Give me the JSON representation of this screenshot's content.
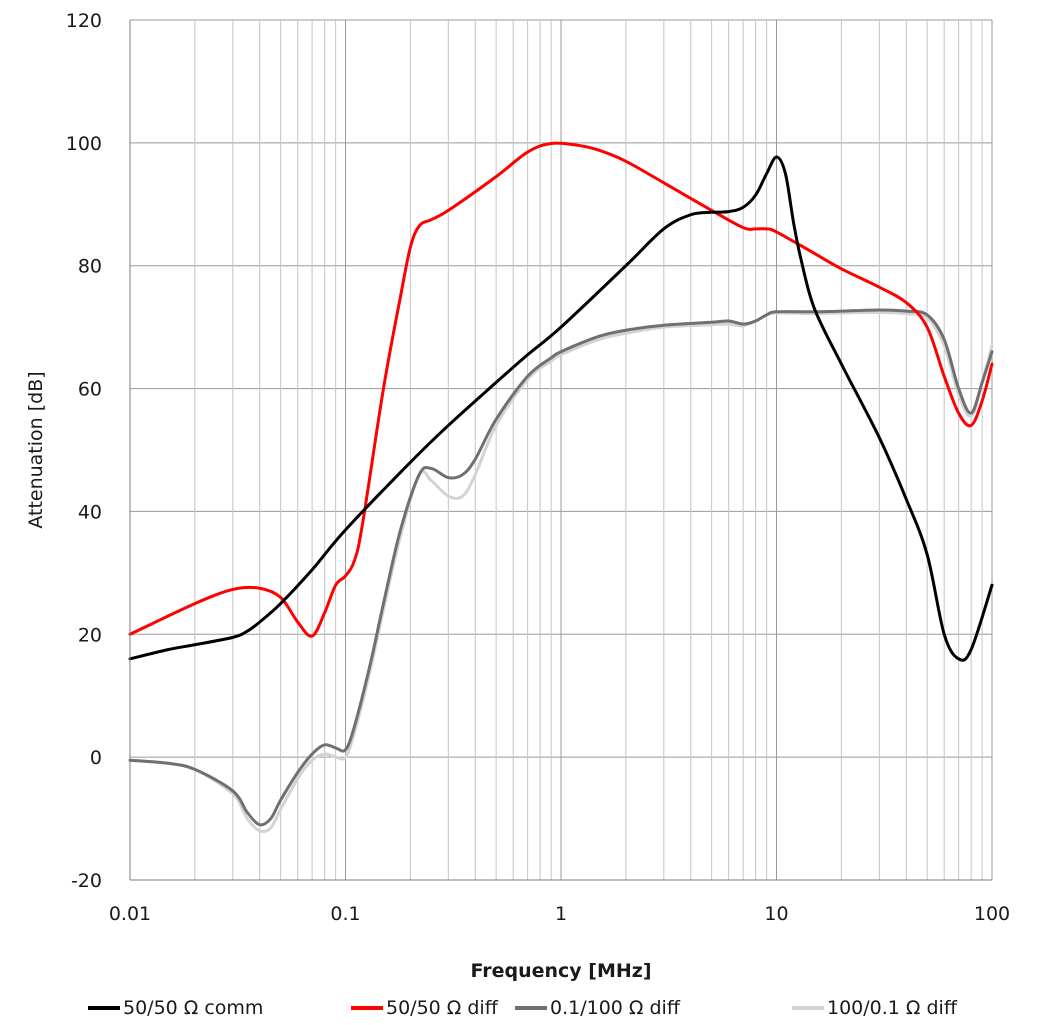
{
  "chart_data": {
    "type": "line",
    "xlabel": "Frequency [MHz]",
    "ylabel": "Attenuation [dB]",
    "x_scale": "log",
    "xlim": [
      0.01,
      100
    ],
    "ylim": [
      -20,
      120
    ],
    "x_ticks": [
      0.01,
      0.1,
      1,
      10,
      100
    ],
    "x_tick_labels": [
      "0.01",
      "0.1",
      "1",
      "10",
      "100"
    ],
    "y_ticks": [
      -20,
      0,
      20,
      40,
      60,
      80,
      100,
      120
    ],
    "y_tick_labels": [
      "-20",
      "0",
      "20",
      "40",
      "60",
      "80",
      "100",
      "120"
    ],
    "grid": true,
    "legend_position": "bottom",
    "series": [
      {
        "name": "50/50 Ω comm",
        "color": "#000000",
        "points": [
          [
            0.01,
            16
          ],
          [
            0.015,
            17.5
          ],
          [
            0.02,
            18.3
          ],
          [
            0.03,
            19.5
          ],
          [
            0.035,
            20.5
          ],
          [
            0.04,
            22
          ],
          [
            0.05,
            25
          ],
          [
            0.07,
            30.5
          ],
          [
            0.1,
            37
          ],
          [
            0.2,
            48
          ],
          [
            0.3,
            54
          ],
          [
            0.5,
            61
          ],
          [
            0.7,
            65.5
          ],
          [
            1,
            70
          ],
          [
            2,
            80
          ],
          [
            3,
            86
          ],
          [
            4,
            88.3
          ],
          [
            5,
            88.7
          ],
          [
            6,
            88.8
          ],
          [
            7,
            89.5
          ],
          [
            8,
            91.5
          ],
          [
            9,
            95
          ],
          [
            10,
            97.7
          ],
          [
            11,
            95
          ],
          [
            12,
            87
          ],
          [
            13,
            81
          ],
          [
            15,
            73
          ],
          [
            20,
            64
          ],
          [
            30,
            52
          ],
          [
            40,
            42
          ],
          [
            50,
            33
          ],
          [
            60,
            20
          ],
          [
            70,
            16
          ],
          [
            80,
            17.5
          ],
          [
            100,
            28
          ]
        ]
      },
      {
        "name": "50/50 Ω diff",
        "color": "#ff0000",
        "points": [
          [
            0.01,
            20
          ],
          [
            0.02,
            25
          ],
          [
            0.03,
            27.3
          ],
          [
            0.04,
            27.5
          ],
          [
            0.05,
            26
          ],
          [
            0.06,
            22
          ],
          [
            0.07,
            19.7
          ],
          [
            0.08,
            23.5
          ],
          [
            0.09,
            28
          ],
          [
            0.1,
            29.5
          ],
          [
            0.11,
            32
          ],
          [
            0.12,
            38
          ],
          [
            0.15,
            60
          ],
          [
            0.18,
            75
          ],
          [
            0.2,
            83
          ],
          [
            0.22,
            86.5
          ],
          [
            0.25,
            87.5
          ],
          [
            0.3,
            89
          ],
          [
            0.5,
            94.5
          ],
          [
            0.7,
            98.5
          ],
          [
            0.9,
            99.9
          ],
          [
            1.2,
            99.6
          ],
          [
            1.5,
            98.8
          ],
          [
            2,
            97
          ],
          [
            3,
            93.5
          ],
          [
            5,
            89
          ],
          [
            7,
            86.2
          ],
          [
            8,
            86
          ],
          [
            9,
            86
          ],
          [
            10,
            85.5
          ],
          [
            15,
            82
          ],
          [
            20,
            79.5
          ],
          [
            30,
            76.5
          ],
          [
            40,
            74
          ],
          [
            50,
            70
          ],
          [
            60,
            62
          ],
          [
            70,
            56
          ],
          [
            80,
            54
          ],
          [
            90,
            58
          ],
          [
            100,
            64
          ]
        ]
      },
      {
        "name": "0.1/100 Ω diff",
        "color": "#707070",
        "points": [
          [
            0.01,
            -0.5
          ],
          [
            0.015,
            -1
          ],
          [
            0.02,
            -2
          ],
          [
            0.03,
            -5.5
          ],
          [
            0.035,
            -9
          ],
          [
            0.04,
            -11
          ],
          [
            0.045,
            -10
          ],
          [
            0.05,
            -7
          ],
          [
            0.06,
            -2.5
          ],
          [
            0.07,
            0.5
          ],
          [
            0.08,
            2
          ],
          [
            0.09,
            1.5
          ],
          [
            0.1,
            1.2
          ],
          [
            0.11,
            5
          ],
          [
            0.13,
            15
          ],
          [
            0.15,
            25
          ],
          [
            0.18,
            37
          ],
          [
            0.22,
            46
          ],
          [
            0.25,
            47
          ],
          [
            0.3,
            45.5
          ],
          [
            0.35,
            46
          ],
          [
            0.4,
            48.5
          ],
          [
            0.5,
            55
          ],
          [
            0.7,
            62
          ],
          [
            0.9,
            65
          ],
          [
            1,
            66
          ],
          [
            1.5,
            68.5
          ],
          [
            2,
            69.5
          ],
          [
            3,
            70.3
          ],
          [
            5,
            70.8
          ],
          [
            6,
            71
          ],
          [
            7,
            70.5
          ],
          [
            8,
            71
          ],
          [
            9,
            72
          ],
          [
            10,
            72.5
          ],
          [
            15,
            72.5
          ],
          [
            20,
            72.6
          ],
          [
            30,
            72.8
          ],
          [
            40,
            72.6
          ],
          [
            50,
            72
          ],
          [
            60,
            68
          ],
          [
            70,
            60
          ],
          [
            80,
            56
          ],
          [
            90,
            61
          ],
          [
            100,
            66
          ]
        ]
      },
      {
        "name": "100/0.1 Ω diff",
        "color": "#d3d3d3",
        "points": [
          [
            0.01,
            -0.5
          ],
          [
            0.015,
            -1
          ],
          [
            0.02,
            -2
          ],
          [
            0.03,
            -6
          ],
          [
            0.035,
            -10
          ],
          [
            0.04,
            -12
          ],
          [
            0.045,
            -11.5
          ],
          [
            0.05,
            -8.5
          ],
          [
            0.06,
            -3.5
          ],
          [
            0.07,
            -0.5
          ],
          [
            0.08,
            0.5
          ],
          [
            0.09,
            0
          ],
          [
            0.1,
            0
          ],
          [
            0.11,
            4
          ],
          [
            0.13,
            14
          ],
          [
            0.15,
            24
          ],
          [
            0.18,
            36
          ],
          [
            0.22,
            46
          ],
          [
            0.25,
            45
          ],
          [
            0.3,
            42.5
          ],
          [
            0.35,
            42.5
          ],
          [
            0.4,
            46
          ],
          [
            0.5,
            54
          ],
          [
            0.7,
            61.5
          ],
          [
            0.9,
            64.5
          ],
          [
            1,
            65.5
          ],
          [
            1.5,
            68
          ],
          [
            2,
            69
          ],
          [
            3,
            70
          ],
          [
            5,
            70.4
          ],
          [
            6,
            70.5
          ],
          [
            7,
            70.2
          ],
          [
            8,
            71
          ],
          [
            9,
            72
          ],
          [
            10,
            72.3
          ],
          [
            15,
            72.2
          ],
          [
            20,
            72.3
          ],
          [
            30,
            72.4
          ],
          [
            40,
            72.2
          ],
          [
            50,
            71.5
          ],
          [
            60,
            67
          ],
          [
            70,
            59
          ],
          [
            80,
            55.5
          ],
          [
            90,
            61
          ],
          [
            100,
            67
          ]
        ]
      }
    ]
  }
}
